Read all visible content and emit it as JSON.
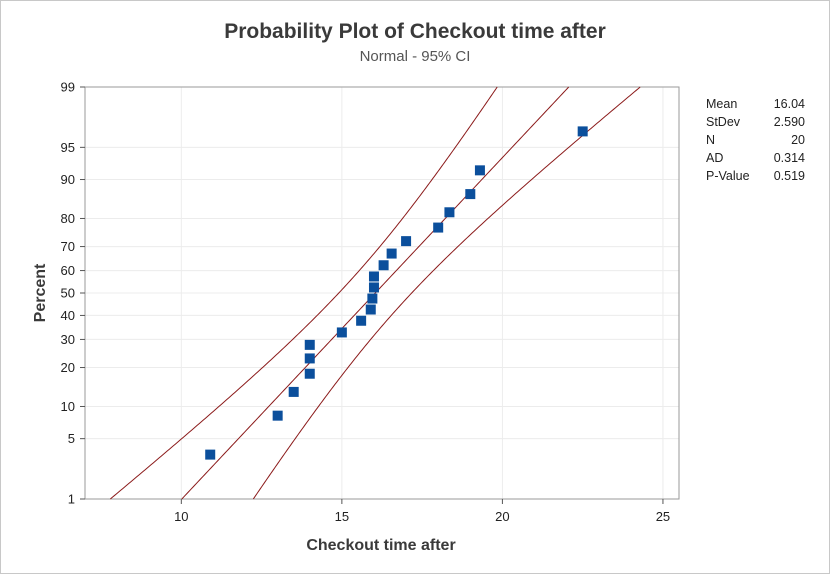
{
  "chart_data": {
    "type": "scatter",
    "title": "Probability Plot of Checkout  time after",
    "subtitle": "Normal - 95% CI",
    "xlabel": "Checkout  time after",
    "ylabel": "Percent",
    "xlim": [
      7,
      25.5
    ],
    "x_ticks": [
      10,
      15,
      20,
      25
    ],
    "x_tick_labels": [
      "10",
      "15",
      "20",
      "25"
    ],
    "y_ticks": [
      1,
      5,
      10,
      20,
      30,
      40,
      50,
      60,
      70,
      80,
      90,
      95,
      99
    ],
    "y_tick_labels": [
      "1",
      "5",
      "10",
      "20",
      "30",
      "40",
      "50",
      "60",
      "70",
      "80",
      "90",
      "95",
      "99"
    ],
    "ylim": [
      1,
      99
    ],
    "y_scale": "normal-probability",
    "grid": true,
    "points": [
      {
        "x": 10.9,
        "y": 3.4
      },
      {
        "x": 13.0,
        "y": 8.3
      },
      {
        "x": 13.5,
        "y": 13.2
      },
      {
        "x": 14.0,
        "y": 18.1
      },
      {
        "x": 14.0,
        "y": 23.0
      },
      {
        "x": 14.0,
        "y": 27.9
      },
      {
        "x": 15.0,
        "y": 32.8
      },
      {
        "x": 15.6,
        "y": 37.7
      },
      {
        "x": 15.9,
        "y": 42.6
      },
      {
        "x": 15.95,
        "y": 47.5
      },
      {
        "x": 16.0,
        "y": 52.5
      },
      {
        "x": 16.0,
        "y": 57.4
      },
      {
        "x": 16.3,
        "y": 62.3
      },
      {
        "x": 16.55,
        "y": 67.2
      },
      {
        "x": 17.0,
        "y": 72.1
      },
      {
        "x": 18.0,
        "y": 77.0
      },
      {
        "x": 18.35,
        "y": 81.9
      },
      {
        "x": 19.0,
        "y": 86.8
      },
      {
        "x": 19.3,
        "y": 91.7
      },
      {
        "x": 22.5,
        "y": 96.6
      }
    ],
    "fit": {
      "mean": 16.04,
      "stdev": 2.59
    },
    "ci_level": 0.95,
    "n": 20,
    "line_color": "#8b1a1a",
    "marker_color": "#0b4f9c",
    "stats": [
      {
        "label": "Mean",
        "value": "16.04"
      },
      {
        "label": "StDev",
        "value": "2.590"
      },
      {
        "label": "N",
        "value": "20"
      },
      {
        "label": "AD",
        "value": "0.314"
      },
      {
        "label": "P-Value",
        "value": "0.519"
      }
    ]
  }
}
